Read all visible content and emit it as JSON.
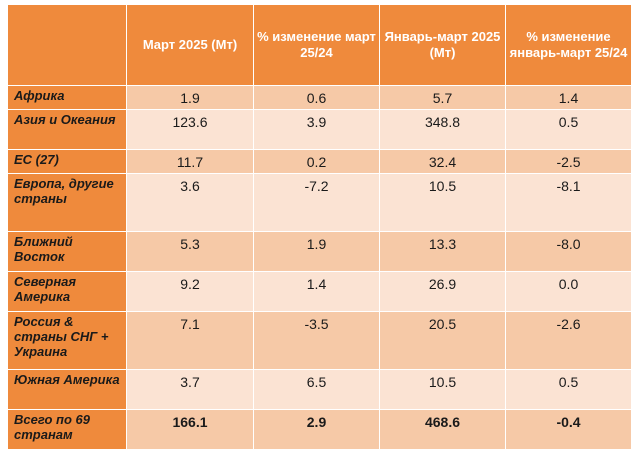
{
  "table": {
    "headers": [
      "",
      "Март 2025 (Мт)",
      "% изменение март 25/24",
      "Январь-март 2025 (Мт)",
      "% изменение январь-март 25/24"
    ],
    "rows": [
      {
        "region": "Африка",
        "values": [
          "1.9",
          "0.6",
          "5.7",
          "1.4"
        ]
      },
      {
        "region": "Азия и Океания",
        "values": [
          "123.6",
          "3.9",
          "348.8",
          "0.5"
        ]
      },
      {
        "region": "ЕС (27)",
        "values": [
          "11.7",
          "0.2",
          "32.4",
          "-2.5"
        ]
      },
      {
        "region": "Европа, другие страны",
        "values": [
          "3.6",
          "-7.2",
          "10.5",
          "-8.1"
        ]
      },
      {
        "region": "Ближний Восток",
        "values": [
          "5.3",
          "1.9",
          "13.3",
          "-8.0"
        ]
      },
      {
        "region": "Северная Америка",
        "values": [
          "9.2",
          "1.4",
          "26.9",
          "0.0"
        ]
      },
      {
        "region": "Россия & страны СНГ + Украина",
        "values": [
          "7.1",
          "-3.5",
          "20.5",
          "-2.6"
        ]
      },
      {
        "region": "Южная Америка",
        "values": [
          "3.7",
          "6.5",
          "10.5",
          "0.5"
        ]
      },
      {
        "region": "Всего по 69 странам",
        "values": [
          "166.1",
          "2.9",
          "468.6",
          "-0.4"
        ]
      }
    ]
  },
  "colors": {
    "header_bg": "#ef8a3c",
    "row_odd_bg": "#f6c9a7",
    "row_even_bg": "#fbe3d3",
    "header_text": "#ffffff",
    "body_text": "#1a1a1a"
  }
}
